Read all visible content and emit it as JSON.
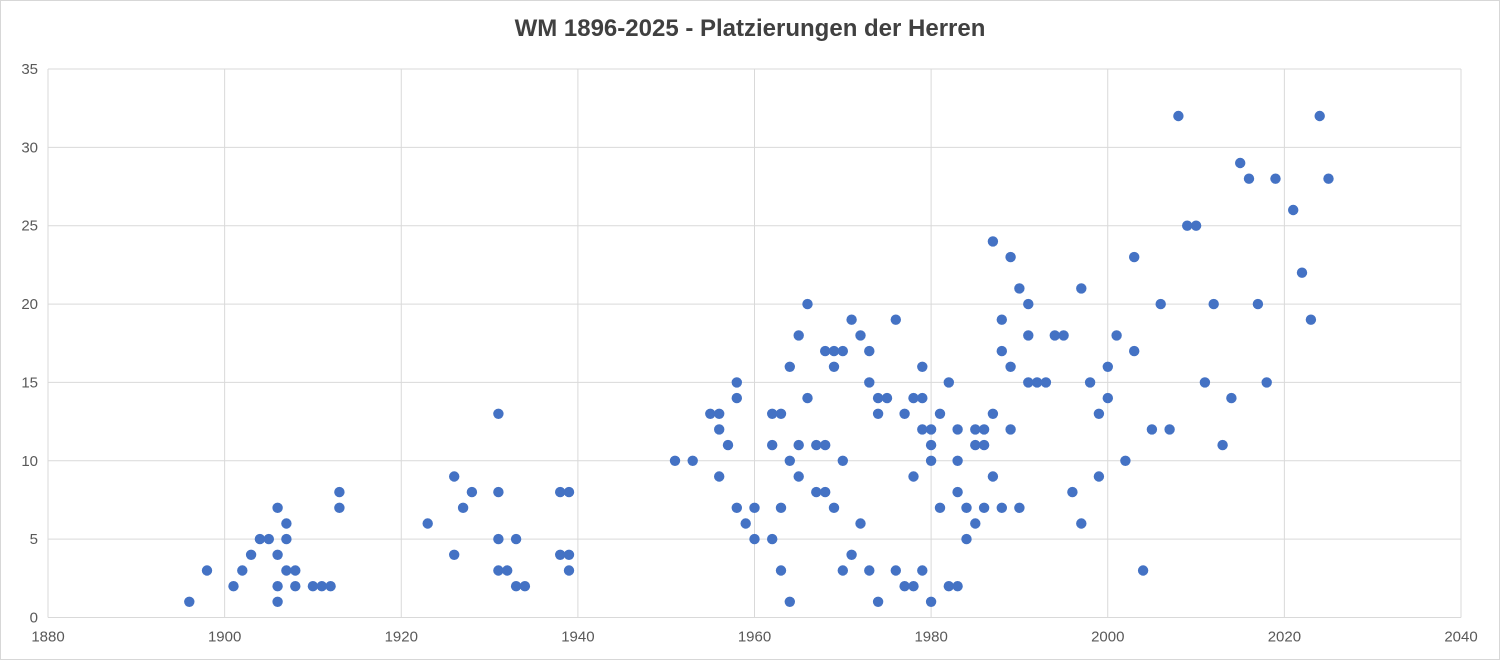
{
  "chart": {
    "title": "WM 1896-2025 - Platzierungen der Herren"
  },
  "chart_data": {
    "type": "scatter",
    "title": "WM 1896-2025 - Platzierungen der Herren",
    "xlabel": "",
    "ylabel": "",
    "xlim": [
      1880,
      2040
    ],
    "ylim": [
      0,
      35
    ],
    "x_ticks": [
      1880,
      1900,
      1920,
      1940,
      1960,
      1980,
      2000,
      2020,
      2040
    ],
    "y_ticks": [
      0,
      5,
      10,
      15,
      20,
      25,
      30,
      35
    ],
    "grid": true,
    "legend_position": "none",
    "marker_color": "#4472C4",
    "gridline_color": "#d9d9d9",
    "axis_label_color": "#595959",
    "title_color": "#404040",
    "background_color": "#ffffff",
    "points": [
      [
        1896,
        1
      ],
      [
        1898,
        3
      ],
      [
        1901,
        2
      ],
      [
        1902,
        3
      ],
      [
        1903,
        4
      ],
      [
        1904,
        5
      ],
      [
        1905,
        5
      ],
      [
        1906,
        1
      ],
      [
        1906,
        2
      ],
      [
        1906,
        4
      ],
      [
        1906,
        7
      ],
      [
        1907,
        3
      ],
      [
        1907,
        5
      ],
      [
        1907,
        6
      ],
      [
        1908,
        2
      ],
      [
        1908,
        3
      ],
      [
        1910,
        2
      ],
      [
        1911,
        2
      ],
      [
        1912,
        2
      ],
      [
        1913,
        7
      ],
      [
        1913,
        8
      ],
      [
        1923,
        6
      ],
      [
        1926,
        4
      ],
      [
        1926,
        9
      ],
      [
        1927,
        7
      ],
      [
        1928,
        8
      ],
      [
        1931,
        3
      ],
      [
        1931,
        5
      ],
      [
        1931,
        8
      ],
      [
        1931,
        13
      ],
      [
        1932,
        3
      ],
      [
        1933,
        2
      ],
      [
        1933,
        5
      ],
      [
        1934,
        2
      ],
      [
        1938,
        4
      ],
      [
        1938,
        8
      ],
      [
        1939,
        3
      ],
      [
        1939,
        4
      ],
      [
        1939,
        8
      ],
      [
        1951,
        10
      ],
      [
        1953,
        10
      ],
      [
        1955,
        13
      ],
      [
        1956,
        9
      ],
      [
        1956,
        12
      ],
      [
        1956,
        13
      ],
      [
        1957,
        11
      ],
      [
        1958,
        7
      ],
      [
        1958,
        14
      ],
      [
        1958,
        15
      ],
      [
        1959,
        6
      ],
      [
        1960,
        5
      ],
      [
        1960,
        7
      ],
      [
        1962,
        5
      ],
      [
        1962,
        11
      ],
      [
        1962,
        13
      ],
      [
        1963,
        3
      ],
      [
        1963,
        7
      ],
      [
        1963,
        13
      ],
      [
        1964,
        1
      ],
      [
        1964,
        10
      ],
      [
        1964,
        16
      ],
      [
        1965,
        9
      ],
      [
        1965,
        11
      ],
      [
        1965,
        18
      ],
      [
        1966,
        14
      ],
      [
        1966,
        20
      ],
      [
        1967,
        8
      ],
      [
        1967,
        11
      ],
      [
        1968,
        8
      ],
      [
        1968,
        11
      ],
      [
        1968,
        17
      ],
      [
        1969,
        7
      ],
      [
        1969,
        16
      ],
      [
        1969,
        17
      ],
      [
        1970,
        3
      ],
      [
        1970,
        10
      ],
      [
        1970,
        17
      ],
      [
        1971,
        4
      ],
      [
        1971,
        19
      ],
      [
        1972,
        6
      ],
      [
        1972,
        18
      ],
      [
        1973,
        3
      ],
      [
        1973,
        15
      ],
      [
        1973,
        17
      ],
      [
        1974,
        1
      ],
      [
        1974,
        13
      ],
      [
        1974,
        14
      ],
      [
        1975,
        14
      ],
      [
        1976,
        3
      ],
      [
        1976,
        19
      ],
      [
        1977,
        2
      ],
      [
        1977,
        13
      ],
      [
        1978,
        2
      ],
      [
        1978,
        9
      ],
      [
        1978,
        14
      ],
      [
        1979,
        3
      ],
      [
        1979,
        12
      ],
      [
        1979,
        14
      ],
      [
        1979,
        16
      ],
      [
        1980,
        1
      ],
      [
        1980,
        10
      ],
      [
        1980,
        11
      ],
      [
        1980,
        12
      ],
      [
        1981,
        7
      ],
      [
        1981,
        13
      ],
      [
        1982,
        2
      ],
      [
        1982,
        15
      ],
      [
        1983,
        2
      ],
      [
        1983,
        8
      ],
      [
        1983,
        10
      ],
      [
        1983,
        12
      ],
      [
        1984,
        5
      ],
      [
        1984,
        7
      ],
      [
        1985,
        6
      ],
      [
        1985,
        11
      ],
      [
        1985,
        12
      ],
      [
        1986,
        7
      ],
      [
        1986,
        11
      ],
      [
        1986,
        12
      ],
      [
        1987,
        9
      ],
      [
        1987,
        13
      ],
      [
        1987,
        24
      ],
      [
        1988,
        7
      ],
      [
        1988,
        17
      ],
      [
        1988,
        19
      ],
      [
        1989,
        12
      ],
      [
        1989,
        16
      ],
      [
        1989,
        23
      ],
      [
        1990,
        7
      ],
      [
        1990,
        21
      ],
      [
        1991,
        15
      ],
      [
        1991,
        18
      ],
      [
        1991,
        20
      ],
      [
        1992,
        15
      ],
      [
        1993,
        15
      ],
      [
        1994,
        18
      ],
      [
        1995,
        18
      ],
      [
        1996,
        8
      ],
      [
        1997,
        6
      ],
      [
        1997,
        21
      ],
      [
        1998,
        15
      ],
      [
        1999,
        9
      ],
      [
        1999,
        13
      ],
      [
        2000,
        14
      ],
      [
        2000,
        16
      ],
      [
        2001,
        18
      ],
      [
        2002,
        10
      ],
      [
        2003,
        17
      ],
      [
        2003,
        23
      ],
      [
        2004,
        3
      ],
      [
        2005,
        12
      ],
      [
        2006,
        20
      ],
      [
        2007,
        12
      ],
      [
        2008,
        32
      ],
      [
        2009,
        25
      ],
      [
        2010,
        25
      ],
      [
        2011,
        15
      ],
      [
        2012,
        20
      ],
      [
        2013,
        11
      ],
      [
        2014,
        14
      ],
      [
        2015,
        29
      ],
      [
        2016,
        28
      ],
      [
        2017,
        20
      ],
      [
        2018,
        15
      ],
      [
        2019,
        28
      ],
      [
        2021,
        26
      ],
      [
        2022,
        22
      ],
      [
        2023,
        19
      ],
      [
        2024,
        32
      ],
      [
        2025,
        28
      ]
    ]
  }
}
